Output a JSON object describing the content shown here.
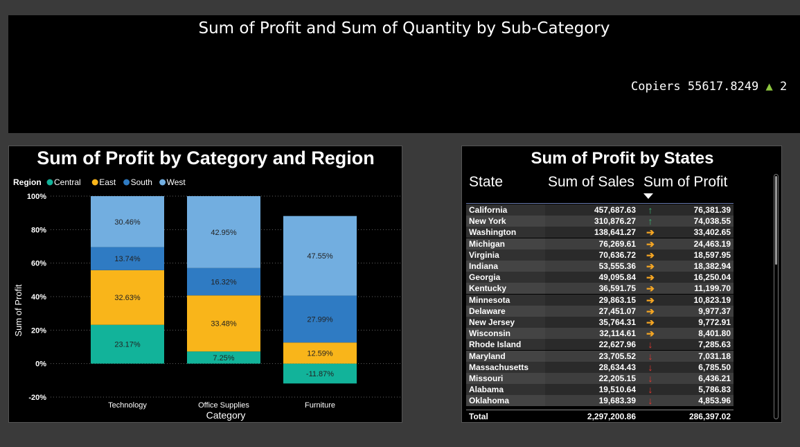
{
  "top": {
    "title": "Sum of Profit and Sum of Quantity by Sub-Category",
    "ticker": {
      "name": "Copiers",
      "value": "55617.8249",
      "arrow": "▲",
      "tail": "2"
    }
  },
  "chart_data": {
    "type": "bar",
    "stacked": true,
    "title": "Sum of Profit by Category and Region",
    "xlabel": "Category",
    "ylabel": "Sum of Profit",
    "ylim": [
      -20,
      100
    ],
    "yticks": [
      "100%",
      "80%",
      "60%",
      "40%",
      "20%",
      "0%",
      "-20%"
    ],
    "categories": [
      "Technology",
      "Office Supplies",
      "Furniture"
    ],
    "legend_title": "Region",
    "legend_position": "top-left",
    "series": [
      {
        "name": "Central",
        "color": "#12b39a",
        "values": [
          23.17,
          7.25,
          -11.87
        ],
        "labels": [
          "23.17%",
          "7.25%",
          "-11.87%"
        ]
      },
      {
        "name": "East",
        "color": "#f9b51a",
        "values": [
          32.63,
          33.48,
          12.59
        ],
        "labels": [
          "32.63%",
          "33.48%",
          "12.59%"
        ]
      },
      {
        "name": "South",
        "color": "#2f7bc3",
        "values": [
          13.74,
          16.32,
          27.99
        ],
        "labels": [
          "13.74%",
          "16.32%",
          "27.99%"
        ]
      },
      {
        "name": "West",
        "color": "#72aee0",
        "values": [
          30.46,
          42.95,
          47.55
        ],
        "labels": [
          "30.46%",
          "42.95%",
          "47.55%"
        ]
      }
    ]
  },
  "table": {
    "title": "Sum of Profit by States",
    "headers": {
      "state": "State",
      "sales": "Sum of Sales",
      "profit": "Sum of Profit"
    },
    "rows": [
      {
        "state": "California",
        "sales": "457,687.63",
        "trend": "up",
        "profit": "76,381.39"
      },
      {
        "state": "New York",
        "sales": "310,876.27",
        "trend": "up",
        "profit": "74,038.55"
      },
      {
        "state": "Washington",
        "sales": "138,641.27",
        "trend": "right",
        "profit": "33,402.65"
      },
      {
        "state": "Michigan",
        "sales": "76,269.61",
        "trend": "right",
        "profit": "24,463.19"
      },
      {
        "state": "Virginia",
        "sales": "70,636.72",
        "trend": "right",
        "profit": "18,597.95"
      },
      {
        "state": "Indiana",
        "sales": "53,555.36",
        "trend": "right",
        "profit": "18,382.94"
      },
      {
        "state": "Georgia",
        "sales": "49,095.84",
        "trend": "right",
        "profit": "16,250.04"
      },
      {
        "state": "Kentucky",
        "sales": "36,591.75",
        "trend": "right",
        "profit": "11,199.70"
      },
      {
        "state": "Minnesota",
        "sales": "29,863.15",
        "trend": "right",
        "profit": "10,823.19"
      },
      {
        "state": "Delaware",
        "sales": "27,451.07",
        "trend": "right",
        "profit": "9,977.37"
      },
      {
        "state": "New Jersey",
        "sales": "35,764.31",
        "trend": "right",
        "profit": "9,772.91"
      },
      {
        "state": "Wisconsin",
        "sales": "32,114.61",
        "trend": "right",
        "profit": "8,401.80"
      },
      {
        "state": "Rhode Island",
        "sales": "22,627.96",
        "trend": "down",
        "profit": "7,285.63"
      },
      {
        "state": "Maryland",
        "sales": "23,705.52",
        "trend": "down",
        "profit": "7,031.18"
      },
      {
        "state": "Massachusetts",
        "sales": "28,634.43",
        "trend": "down",
        "profit": "6,785.50"
      },
      {
        "state": "Missouri",
        "sales": "22,205.15",
        "trend": "down",
        "profit": "6,436.21"
      },
      {
        "state": "Alabama",
        "sales": "19,510.64",
        "trend": "down",
        "profit": "5,786.83"
      },
      {
        "state": "Oklahoma",
        "sales": "19,683.39",
        "trend": "down",
        "profit": "4,853.96"
      }
    ],
    "total": {
      "label": "Total",
      "sales": "2,297,200.86",
      "profit": "286,397.02"
    }
  }
}
